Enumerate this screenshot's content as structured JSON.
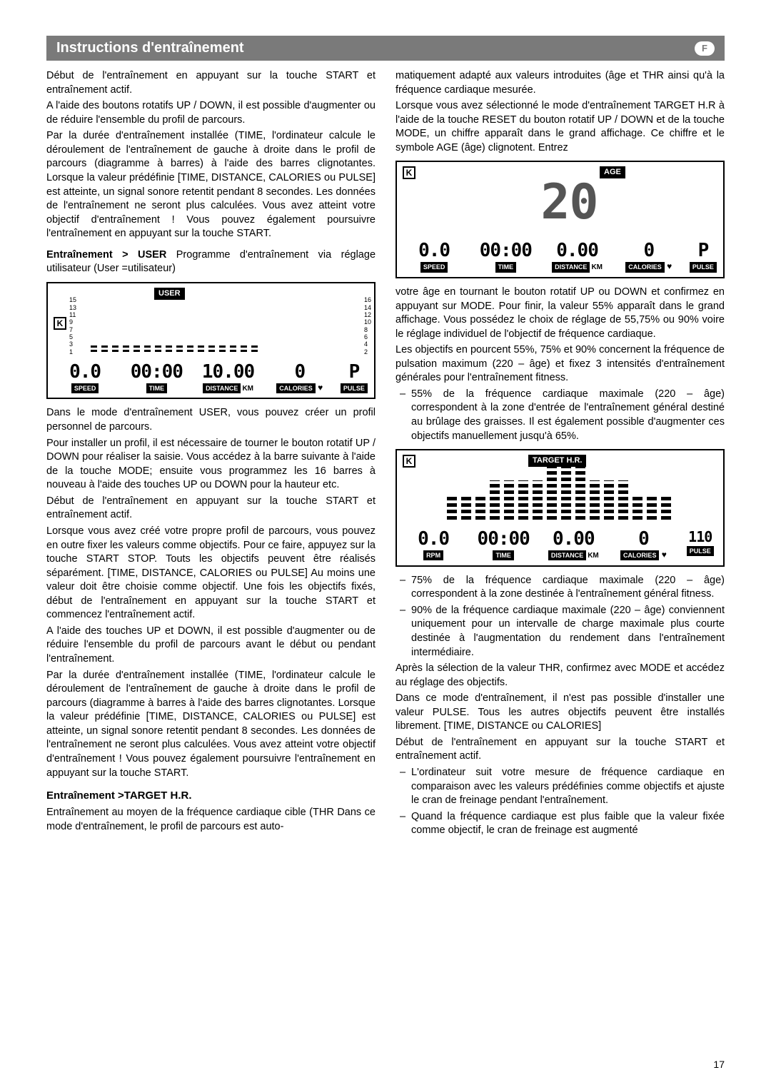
{
  "header": {
    "title": "Instructions d'entraînement",
    "badge": "F"
  },
  "left": {
    "p1": "Début de l'entraînement en appuyant sur la touche START et entraînement actif.",
    "p2": "A l'aide des boutons rotatifs UP / DOWN, il est possible d'augmenter ou de réduire l'ensemble du profil de parcours.",
    "p3": "Par la durée d'entraînement installée (TIME, l'ordinateur calcule le déroulement de l'entraînement de gauche à droite dans le profil de parcours (diagramme à barres) à l'aide des barres clignotantes. Lorsque la valeur prédéfinie [TIME, DISTANCE, CALORIES ou PULSE] est atteinte, un signal sonore retentit pendant 8 secondes. Les données de l'entraînement ne seront plus calculées. Vous avez atteint votre objectif d'entraînement ! Vous pouvez également poursuivre l'entraînement en appuyant sur la touche START.",
    "user_heading": "Entraînement > USER",
    "user_heading_rest": "Programme d'entraînement via réglage utilisateur (User =utilisateur)",
    "p4": "Dans le mode d'entraînement USER, vous pouvez créer un profil personnel de parcours.",
    "p5": "Pour installer un profil, il est nécessaire de tourner le bouton rotatif UP / DOWN pour réaliser la saisie. Vous accédez à la barre suivante à l'aide de la touche MODE; ensuite vous programmez les 16 barres à nouveau à l'aide des touches UP ou DOWN pour la hauteur etc.",
    "p6": "Début de l'entraînement en appuyant sur la touche START et entraînement actif.",
    "p7": "Lorsque vous avez créé votre propre profil de parcours, vous pouvez en outre fixer les valeurs comme objectifs. Pour ce faire, appuyez sur la touche START STOP. Touts les objectifs peuvent être réalisés séparément. [TIME, DISTANCE, CALORIES ou PULSE] Au moins une valeur doit être choisie comme objectif. Une fois les objectifs fixés, début de l'entraînement en appuyant sur la touche START et commencez l'entraînement actif.",
    "p8": "A l'aide des touches UP et DOWN, il est possible d'augmenter ou de réduire l'ensemble du profil de parcours avant le début ou pendant l'entraînement.",
    "p9": "Par la durée d'entraînement installée (TIME, l'ordinateur calcule le déroulement de l'entraînement de gauche à droite dans le profil de parcours (diagramme à barres  à l'aide des barres clignotantes. Lorsque la valeur prédéfinie [TIME, DISTANCE, CALORIES ou PULSE] est atteinte, un signal sonore retentit pendant 8 secondes. Les données de l'entraînement ne seront plus calculées. Vous avez atteint votre objectif d'entraînement ! Vous pouvez également poursuivre l'entraînement en appuyant sur la touche START.",
    "target_hr_heading": "Entraînement >TARGET H.R.",
    "p10": "Entraînement au moyen de la fréquence cardiaque cible (THR Dans ce mode d'entraînement, le profil de parcours est auto-"
  },
  "right": {
    "p1": "matiquement adapté aux valeurs introduites (âge et THR  ainsi qu'à la fréquence cardiaque mesurée.",
    "p2": "Lorsque vous avez sélectionné le mode d'entraînement TARGET H.R à l'aide de la touche RESET du bouton rotatif UP / DOWN et de la touche MODE, un chiffre apparaît dans le grand affichage. Ce chiffre et le symbole AGE (âge) clignotent. Entrez",
    "p3": "votre âge en tournant le bouton rotatif UP ou DOWN et confirmez en appuyant sur MODE. Pour finir, la valeur 55% apparaît dans le grand affichage. Vous possédez le choix de réglage de 55,75% ou 90% voire le réglage individuel de l'objectif de fréquence cardiaque.",
    "p4": "Les objectifs en pourcent 55%, 75% et 90% concernent la fréquence de pulsation maximum (220 – âge) et fixez 3 intensités d'entraînement générales pour l'entraînement fitness.",
    "li1": "55% de la fréquence cardiaque maximale (220 – âge) correspondent à la zone d'entrée de l'entraînement général destiné au brûlage des graisses. Il est également possible d'augmenter ces objectifs manuellement jusqu'à 65%.",
    "li2": "75% de la fréquence cardiaque maximale (220 – âge) correspondent à la zone  destinée à l'entraînement général fitness.",
    "li3": "90% de la fréquence cardiaque maximale (220 – âge) conviennent uniquement pour un intervalle de charge maximale plus courte destinée à l'augmentation du rendement dans l'entraînement intermédiaire.",
    "p5": "Après la sélection de la valeur THR, confirmez avec MODE et accédez au réglage des objectifs.",
    "p6": "Dans ce mode d'entraînement, il n'est pas possible d'installer une valeur PULSE. Tous les autres objectifs peuvent être installés librement. [TIME, DISTANCE ou CALORIES]",
    "p7": "Début de l'entraînement en appuyant sur la touche START et entraînement actif.",
    "li4": "L'ordinateur suit votre mesure de fréquence cardiaque en comparaison avec les valeurs prédéfinies comme objectifs et ajuste le cran de freinage pendant l'entraînement.",
    "li5": "Quand la fréquence cardiaque est plus faible que la valeur fixée comme objectif, le cran de freinage est augmenté"
  },
  "displays": {
    "user": {
      "mode_label": "USER",
      "scale_left": [
        "15",
        "13",
        "11",
        "9",
        "7",
        "5",
        "3",
        "1"
      ],
      "scale_right": [
        "16",
        "14",
        "12",
        "10",
        "8",
        "6",
        "4",
        "2"
      ],
      "bars": [
        10,
        10,
        10,
        10,
        10,
        10,
        10,
        10,
        10,
        10,
        10,
        10,
        10,
        10,
        10,
        10
      ],
      "speed": "0.0",
      "speed_label": "SPEED",
      "time": "00:00",
      "time_label": "TIME",
      "distance": "10.00",
      "distance_label": "DISTANCE",
      "distance_unit": "KM",
      "calories": "0",
      "calories_label": "CALORIES",
      "pulse": "P",
      "pulse_label": "PULSE"
    },
    "age": {
      "age_label": "AGE",
      "big_value": "20",
      "speed": "0.0",
      "speed_label": "SPEED",
      "time": "00:00",
      "time_label": "TIME",
      "distance": "0.00",
      "distance_label": "DISTANCE",
      "distance_unit": "KM",
      "calories": "0",
      "calories_label": "CALORIES",
      "pulse": "P",
      "pulse_label": "PULSE"
    },
    "target": {
      "mode_label": "TARGET H.R.",
      "bars": [
        35,
        35,
        35,
        55,
        55,
        55,
        55,
        75,
        75,
        75,
        55,
        55,
        55,
        35,
        35,
        35
      ],
      "rpm": "0.0",
      "rpm_label": "RPM",
      "time": "00:00",
      "time_label": "TIME",
      "distance": "0.00",
      "distance_label": "DISTANCE",
      "distance_unit": "KM",
      "calories": "0",
      "calories_label": "CALORIES",
      "pulse": "110",
      "pulse_label": "PULSE"
    }
  },
  "page_num": "17"
}
